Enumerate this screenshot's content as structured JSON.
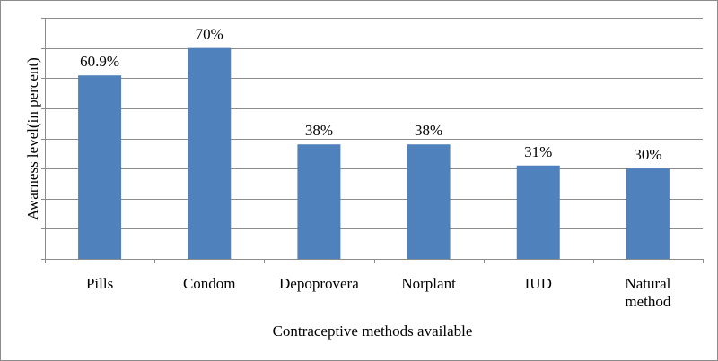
{
  "chart_data": {
    "type": "bar",
    "title": "",
    "xlabel": "Contraceptive methods available",
    "ylabel": "Awarness level(in percent)",
    "categories": [
      [
        "Pills"
      ],
      [
        "Condom"
      ],
      [
        "Depoprovera"
      ],
      [
        "Norplant"
      ],
      [
        "IUD"
      ],
      [
        "Natural",
        "method"
      ]
    ],
    "values": [
      60.9,
      70,
      38,
      38,
      31,
      30
    ],
    "data_labels": [
      "60.9%",
      "70%",
      "38%",
      "38%",
      "31%",
      "30%"
    ],
    "ylim": [
      0,
      80
    ],
    "grid": true,
    "legend": "none",
    "bar_color": "#4f81bd",
    "grid_color": "#8c8c8c"
  }
}
